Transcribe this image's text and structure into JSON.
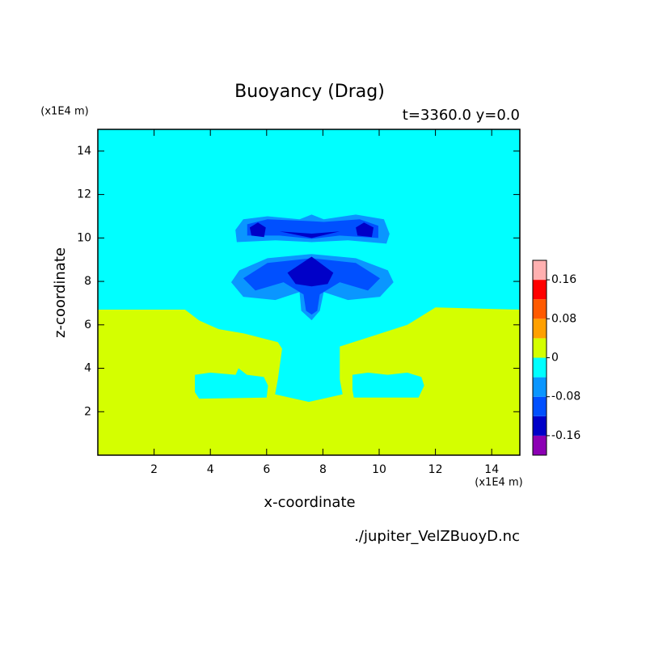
{
  "chart_data": {
    "type": "contour",
    "title": "Buoyancy (Drag)",
    "subtitle": "t=3360.0 y=0.0",
    "x_unit": "(x1E4 m)",
    "y_unit": "(x1E4 m)",
    "x_label": "x-coordinate",
    "y_label": "z-coordinate",
    "source": "./jupiter_VelZBuoyD.nc",
    "xlim": [
      0,
      15
    ],
    "ylim": [
      0,
      15
    ],
    "xticks": [
      2,
      4,
      6,
      8,
      10,
      12,
      14
    ],
    "yticks": [
      2,
      4,
      6,
      8,
      10,
      12,
      14
    ],
    "colorbar": {
      "levels": [
        -0.2,
        -0.16,
        -0.12,
        -0.08,
        -0.04,
        0,
        0.04,
        0.08,
        0.12,
        0.16,
        0.2
      ],
      "colors": [
        "#8c00b4",
        "#0000c8",
        "#0050ff",
        "#0a96ff",
        "#00ffff",
        "#d4ff00",
        "#ffa000",
        "#ff5a00",
        "#ff0000",
        "#ffb0b0"
      ],
      "ticks": [
        -0.16,
        -0.08,
        0,
        0.08,
        0.16
      ]
    },
    "regions": [
      {
        "level": -0.04,
        "x": [
          0,
          15,
          15,
          0
        ],
        "z": [
          0,
          0,
          15,
          15
        ]
      },
      {
        "level": 0,
        "x": [
          0,
          3.1,
          3.6,
          4.3,
          5.2,
          6.4,
          6.55,
          6.4,
          6.3,
          7.5,
          8.7,
          8.6,
          8.6,
          9.8,
          11.0,
          12.0,
          15,
          15,
          0
        ],
        "z": [
          6.7,
          6.7,
          6.2,
          5.8,
          5.6,
          5.2,
          4.9,
          3.5,
          2.8,
          2.45,
          2.8,
          3.5,
          5.0,
          5.5,
          6.0,
          6.8,
          6.7,
          0,
          0
        ]
      },
      {
        "level": -0.04,
        "x": [
          3.45,
          4.0,
          4.9,
          5.0,
          5.3,
          5.9,
          6.05,
          6.0,
          3.6,
          3.45
        ],
        "z": [
          3.7,
          3.8,
          3.7,
          4.0,
          3.7,
          3.6,
          3.2,
          2.65,
          2.6,
          2.9
        ]
      },
      {
        "level": -0.04,
        "x": [
          9.05,
          9.6,
          10.3,
          11.0,
          11.5,
          11.6,
          11.4,
          9.1,
          9.05
        ],
        "z": [
          3.7,
          3.8,
          3.7,
          3.8,
          3.6,
          3.2,
          2.65,
          2.65,
          3.0
        ]
      },
      {
        "level": -0.08,
        "x": [
          4.94,
          4.89,
          5.17,
          6.03,
          7.17,
          7.6,
          8.03,
          9.17,
          10.17,
          10.37,
          10.26,
          8.89,
          7.6,
          6.31
        ],
        "z": [
          9.81,
          10.37,
          10.86,
          11.0,
          10.86,
          11.08,
          10.86,
          11.08,
          10.86,
          10.19,
          9.74,
          9.89,
          9.81,
          9.89
        ]
      },
      {
        "level": -0.12,
        "x": [
          5.31,
          5.31,
          6.03,
          7.46,
          8.03,
          9.31,
          9.97,
          9.97,
          8.6,
          7.6,
          6.46
        ],
        "z": [
          10.11,
          10.63,
          10.86,
          10.78,
          10.74,
          10.86,
          10.56,
          10.0,
          10.11,
          9.96,
          10.11
        ]
      },
      {
        "level": -0.16,
        "x": [
          5.46,
          5.4,
          5.69,
          5.97,
          5.91
        ],
        "z": [
          10.11,
          10.48,
          10.71,
          10.48,
          10.04
        ]
      },
      {
        "level": -0.16,
        "x": [
          9.23,
          9.17,
          9.46,
          9.8,
          9.74
        ],
        "z": [
          10.11,
          10.48,
          10.71,
          10.48,
          10.04
        ]
      },
      {
        "level": -0.16,
        "x": [
          6.46,
          7.6,
          8.6,
          7.6
        ],
        "z": [
          10.3,
          10.0,
          10.3,
          10.2
        ]
      },
      {
        "level": -0.08,
        "x": [
          4.74,
          5.03,
          6.03,
          7.6,
          9.17,
          10.31,
          10.51,
          10.03,
          8.89,
          8.03,
          7.89,
          7.6,
          7.23,
          7.17,
          6.31,
          5.17
        ],
        "z": [
          7.96,
          8.51,
          9.07,
          9.26,
          9.07,
          8.51,
          7.96,
          7.29,
          7.14,
          7.51,
          6.65,
          6.21,
          6.65,
          7.51,
          7.14,
          7.29
        ]
      },
      {
        "level": -0.12,
        "x": [
          5.17,
          6.03,
          7.6,
          9.17,
          10.03,
          9.6,
          8.6,
          7.89,
          7.8,
          7.6,
          7.4,
          7.31,
          6.6,
          5.6
        ],
        "z": [
          8.14,
          8.85,
          9.07,
          8.85,
          8.14,
          7.58,
          7.96,
          7.4,
          6.65,
          6.47,
          6.65,
          7.4,
          7.96,
          7.58
        ]
      },
      {
        "level": -0.16,
        "x": [
          6.74,
          7.6,
          8.37,
          8.17,
          7.6,
          7.03
        ],
        "z": [
          8.4,
          9.14,
          8.4,
          7.88,
          7.77,
          7.88
        ]
      }
    ]
  }
}
